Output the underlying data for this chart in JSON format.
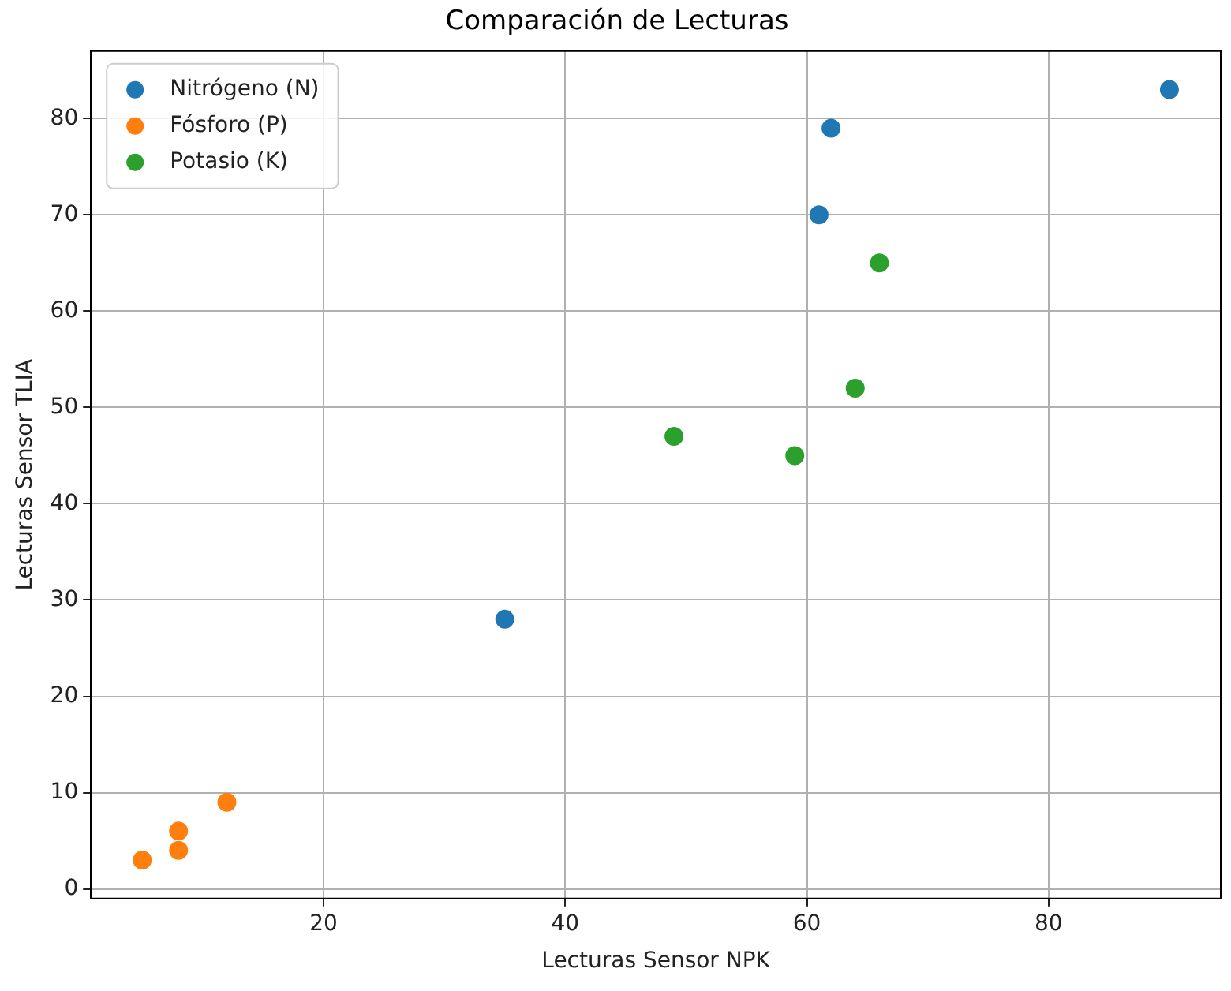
{
  "chart_data": {
    "type": "scatter",
    "title": "Comparación de Lecturas",
    "xlabel": "Lecturas Sensor NPK",
    "ylabel": "Lecturas Sensor TLIA",
    "series": [
      {
        "name": "Nitrógeno (N)",
        "color": "#1f77b4",
        "x": [
          35,
          61,
          62,
          90
        ],
        "values": [
          28,
          70,
          79,
          83
        ]
      },
      {
        "name": "Fósforo (P)",
        "color": "#ff7f0e",
        "x": [
          5,
          8,
          8,
          12
        ],
        "values": [
          3,
          6,
          4,
          9
        ]
      },
      {
        "name": "Potasio (K)",
        "color": "#2ca02c",
        "x": [
          49,
          59,
          64,
          66
        ],
        "values": [
          47,
          45,
          52,
          65
        ]
      }
    ],
    "xlim": [
      0.75,
      94.25
    ],
    "xticks": [
      20,
      40,
      60,
      80
    ],
    "ylim": [
      -1,
      87
    ],
    "yticks": [
      0,
      10,
      20,
      30,
      40,
      50,
      60,
      70,
      80
    ],
    "grid": true,
    "legend": "top left",
    "marker": "circle"
  }
}
